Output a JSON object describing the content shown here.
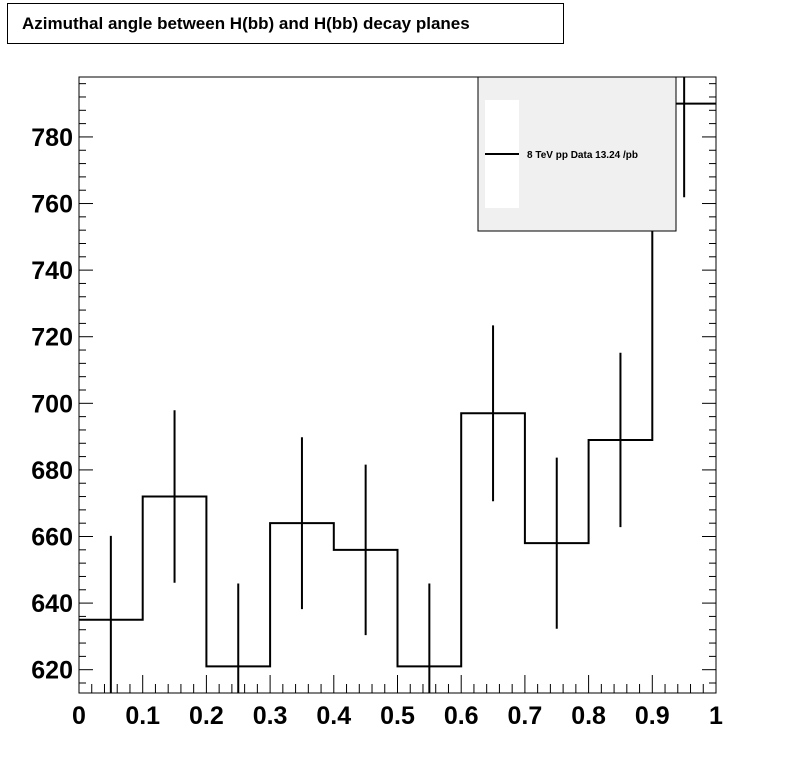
{
  "chart_data": {
    "type": "histogram",
    "title": "Azimuthal angle between H(bb) and H(bb) decay planes",
    "xlabel": "",
    "ylabel": "",
    "xlim": [
      0,
      1
    ],
    "ylim": [
      613,
      798
    ],
    "bin_edges": [
      0,
      0.1,
      0.2,
      0.3,
      0.4,
      0.5,
      0.6,
      0.7,
      0.8,
      0.9,
      1.0
    ],
    "series": [
      {
        "name": "8 TeV pp Data 13.24 /pb",
        "values": [
          635,
          672,
          621,
          664,
          656,
          621,
          697,
          658,
          689,
          790
        ],
        "errors": [
          25.2,
          25.9,
          24.9,
          25.8,
          25.6,
          24.9,
          26.4,
          25.7,
          26.2,
          28.1
        ]
      }
    ],
    "x_ticks": [
      "0",
      "0.1",
      "0.2",
      "0.3",
      "0.4",
      "0.5",
      "0.6",
      "0.7",
      "0.8",
      "0.9",
      "1"
    ],
    "y_ticks": [
      "620",
      "640",
      "660",
      "680",
      "700",
      "720",
      "740",
      "760",
      "780"
    ],
    "legend_position": "top-right",
    "grid": false,
    "colors": {
      "line": "#000000",
      "legend_bg": "#f0f0f0",
      "frame": "#000000"
    }
  }
}
